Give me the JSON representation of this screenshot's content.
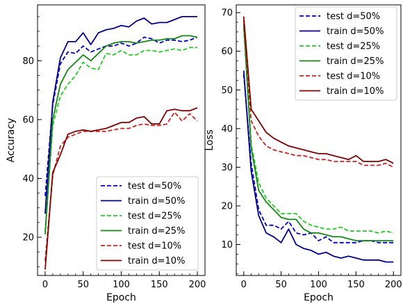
{
  "chart_data": [
    {
      "type": "line",
      "title": "",
      "xlabel": "Epoch",
      "ylabel": "Accuracy",
      "xlim": [
        -10,
        210
      ],
      "ylim": [
        7,
        99
      ],
      "xticks": [
        0,
        50,
        100,
        150,
        200
      ],
      "yticks": [
        20,
        40,
        60,
        80
      ],
      "legend_position": "lower-right",
      "x": [
        0,
        10,
        20,
        30,
        40,
        50,
        60,
        70,
        80,
        90,
        100,
        110,
        120,
        130,
        140,
        150,
        160,
        170,
        180,
        190,
        200
      ],
      "series": [
        {
          "name": "test d=50%",
          "color": "#0000cc",
          "dash": true,
          "values": [
            34,
            65,
            79,
            83,
            82.5,
            85,
            83,
            84,
            85,
            85,
            86,
            85,
            86,
            88,
            87.5,
            86,
            87,
            87,
            86.5,
            87,
            88
          ]
        },
        {
          "name": "train d=50%",
          "color": "#00008b",
          "dash": false,
          "values": [
            28,
            66,
            81,
            86.5,
            86.5,
            89.5,
            85.5,
            89.5,
            90.5,
            91,
            92,
            91.5,
            93.5,
            94.5,
            92.5,
            93,
            93,
            94,
            95,
            95,
            95
          ]
        },
        {
          "name": "test d=25%",
          "color": "#22cc22",
          "dash": true,
          "values": [
            22,
            58,
            68,
            72,
            75,
            79.5,
            77.5,
            77,
            82.5,
            82,
            83.5,
            82,
            82,
            83.5,
            83.5,
            83,
            83.5,
            84,
            83.5,
            84.5,
            84.5
          ]
        },
        {
          "name": "train d=25%",
          "color": "#118811",
          "dash": false,
          "values": [
            21,
            60,
            72,
            77,
            79.5,
            82,
            80,
            82.5,
            85,
            86,
            86.5,
            86.5,
            86,
            86.5,
            87,
            87,
            87.5,
            87.5,
            88.5,
            88.5,
            88
          ]
        },
        {
          "name": "test d=10%",
          "color": "#cc2222",
          "dash": true,
          "values": [
            12,
            41,
            51,
            54,
            55,
            56,
            56,
            56,
            56,
            56.5,
            57,
            57,
            58,
            58.5,
            58,
            58,
            58.5,
            62.5,
            59.5,
            62,
            59.5
          ]
        },
        {
          "name": "train d=10%",
          "color": "#800000",
          "dash": false,
          "values": [
            9,
            42,
            48,
            55,
            56,
            56.5,
            56,
            56.5,
            57,
            58,
            59,
            59,
            60.5,
            61,
            58.5,
            58.5,
            63,
            63.5,
            63,
            63,
            64
          ]
        }
      ]
    },
    {
      "type": "line",
      "title": "",
      "xlabel": "Epoch",
      "ylabel": "Loss",
      "xlim": [
        -10,
        210
      ],
      "ylim": [
        2,
        72
      ],
      "xticks": [
        0,
        50,
        100,
        150,
        200
      ],
      "yticks": [
        10,
        20,
        30,
        40,
        50,
        60,
        70
      ],
      "legend_position": "top-right",
      "x": [
        0,
        10,
        20,
        30,
        40,
        50,
        60,
        70,
        80,
        90,
        100,
        110,
        120,
        130,
        140,
        150,
        160,
        170,
        180,
        190,
        200
      ],
      "series": [
        {
          "name": "test d=50%",
          "color": "#0000cc",
          "dash": true,
          "values": [
            54,
            31,
            19,
            15,
            15,
            14,
            16,
            13,
            12.5,
            13,
            11,
            12,
            10.5,
            10.5,
            10.5,
            10.5,
            11,
            11,
            10.5,
            10.5,
            10.5
          ]
        },
        {
          "name": "train d=50%",
          "color": "#00008b",
          "dash": false,
          "values": [
            55,
            29,
            17.5,
            13,
            12,
            10.5,
            14,
            10,
            9,
            8.5,
            7.5,
            8,
            7,
            6.5,
            7,
            6.5,
            6,
            6,
            6,
            5.5,
            5.5
          ]
        },
        {
          "name": "test d=25%",
          "color": "#22cc22",
          "dash": true,
          "values": [
            66,
            36,
            26,
            22,
            20,
            18,
            18,
            18,
            16,
            15,
            14.5,
            14,
            14,
            14.5,
            13.5,
            13.5,
            13.5,
            13.5,
            13,
            13.5,
            13
          ]
        },
        {
          "name": "train d=25%",
          "color": "#118811",
          "dash": false,
          "values": [
            67,
            35,
            24,
            21,
            19,
            17,
            16.5,
            16.5,
            14,
            13,
            13,
            12.5,
            12,
            12,
            11.5,
            11,
            11,
            11,
            11,
            11,
            11
          ]
        },
        {
          "name": "test d=10%",
          "color": "#cc2222",
          "dash": true,
          "values": [
            68,
            42,
            38,
            35.5,
            34.5,
            34,
            33.5,
            33,
            33,
            32.5,
            32,
            32,
            31.5,
            31.5,
            31.5,
            31.5,
            30.5,
            30.5,
            30.5,
            31,
            30
          ]
        },
        {
          "name": "train d=10%",
          "color": "#800000",
          "dash": false,
          "values": [
            69,
            45,
            42,
            39,
            37.5,
            36.5,
            35.5,
            35,
            34.5,
            34,
            33.5,
            33.5,
            33,
            32.5,
            32,
            33,
            31.5,
            31.5,
            31.5,
            32,
            31
          ]
        }
      ]
    }
  ]
}
